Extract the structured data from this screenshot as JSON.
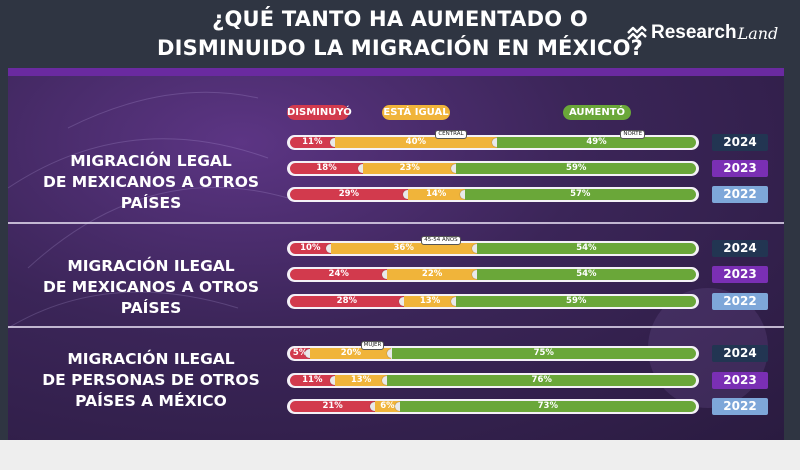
{
  "title": {
    "line1": "¿QUÉ TANTO HA AUMENTADO O",
    "line2": "DISMINUIDO LA MIGRACIÓN EN MÉXICO?"
  },
  "brand": {
    "name_bold": "Research",
    "name_script": "Land",
    "icon": "researchland-logo-icon"
  },
  "colors": {
    "red": "#d23a4d",
    "yellow": "#f0b43a",
    "green": "#6aa739",
    "year2024": "#223552",
    "year2023": "#7a2fb4",
    "year2022": "#7ea7d9"
  },
  "chart_data": {
    "type": "bar",
    "orientation": "horizontal",
    "stacked": true,
    "unit": "%",
    "legend": [
      "DISMINUYÓ",
      "ESTÁ IGUAL",
      "AUMENTÓ"
    ],
    "groups": [
      {
        "label_lines": [
          "MIGRACIÓN LEGAL",
          "DE MEXICANOS A OTROS PAÍSES"
        ],
        "rows": [
          {
            "year": "2024",
            "values": [
              11,
              40,
              49
            ],
            "labels": [
              "11%",
              "40%",
              "49%"
            ],
            "tags": [
              {
                "text": "CENTRAL",
                "segment": 1
              },
              {
                "text": "NORTE",
                "segment": 2
              }
            ]
          },
          {
            "year": "2023",
            "values": [
              18,
              23,
              59
            ],
            "labels": [
              "18%",
              "23%",
              "59%"
            ],
            "tags": []
          },
          {
            "year": "2022",
            "values": [
              29,
              14,
              57
            ],
            "labels": [
              "29%",
              "14%",
              "57%"
            ],
            "tags": []
          }
        ]
      },
      {
        "label_lines": [
          "MIGRACIÓN ILEGAL",
          "DE MEXICANOS A OTROS PAÍSES"
        ],
        "rows": [
          {
            "year": "2024",
            "values": [
              10,
              36,
              54
            ],
            "labels": [
              "10%",
              "36%",
              "54%"
            ],
            "tags": [
              {
                "text": "45-54 AÑOS",
                "segment": 1
              }
            ]
          },
          {
            "year": "2023",
            "values": [
              24,
              22,
              54
            ],
            "labels": [
              "24%",
              "22%",
              "54%"
            ],
            "tags": []
          },
          {
            "year": "2022",
            "values": [
              28,
              13,
              59
            ],
            "labels": [
              "28%",
              "13%",
              "59%"
            ],
            "tags": []
          }
        ]
      },
      {
        "label_lines": [
          "MIGRACIÓN ILEGAL",
          "DE PERSONAS DE OTROS",
          "PAÍSES A MÉXICO"
        ],
        "rows": [
          {
            "year": "2024",
            "values": [
              5,
              20,
              75
            ],
            "labels": [
              "5%",
              "20%",
              "75%"
            ],
            "tags": [
              {
                "text": "MUJER",
                "segment": 1
              }
            ]
          },
          {
            "year": "2023",
            "values": [
              11,
              13,
              76
            ],
            "labels": [
              "11%",
              "13%",
              "76%"
            ],
            "tags": []
          },
          {
            "year": "2022",
            "values": [
              21,
              6,
              73
            ],
            "labels": [
              "21%",
              "6%",
              "73%"
            ],
            "tags": []
          }
        ]
      }
    ]
  }
}
